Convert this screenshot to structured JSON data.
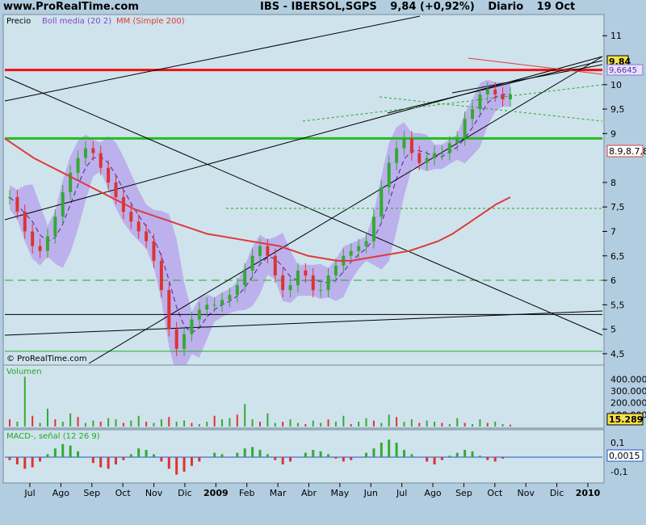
{
  "header": {
    "site": "www.ProRealTime.com",
    "ticker": "IBS - IBERSOL,SGPS",
    "price_change": "9,84 (+0,92%)",
    "period": "Diario",
    "date": "19 Oct"
  },
  "colors": {
    "background": "#b3cde0",
    "panel": "#cfe3ec",
    "bollinger": "#b8a8ec",
    "sma": "#dd3b3b",
    "up": "#33aa33",
    "down": "#dd3333",
    "macd_line": "#2255cc"
  },
  "chart_data": {
    "type": "candlestick",
    "price_panel": {
      "label": "Precio",
      "indicators": [
        "Boll media (20 2)",
        "MM (Simple 200)"
      ],
      "ylim": [
        4.3,
        11.4
      ],
      "y_ticks": [
        "11",
        "10",
        "9,5",
        "9",
        "8",
        "7,5",
        "7",
        "6,5",
        "6",
        "5,5",
        "5",
        "4,5"
      ],
      "last_price": "9,84",
      "boll_middle": "9,6645",
      "sma200": [
        8.9,
        8.7,
        8.5,
        8.35,
        8.2,
        8.05,
        7.9,
        7.75,
        7.6,
        7.45,
        7.35,
        7.25,
        7.15,
        7.05,
        6.95,
        6.9,
        6.85,
        6.8,
        6.75,
        6.7,
        6.6,
        6.5,
        6.45,
        6.4,
        6.4,
        6.45,
        6.5,
        6.55,
        6.6,
        6.7,
        6.8,
        6.95,
        7.15,
        7.35,
        7.55,
        7.7
      ],
      "horizontal_lines": [
        {
          "value": 10.3,
          "color": "#ee1111",
          "width": 3
        },
        {
          "value": 8.9,
          "color": "#22bb22",
          "width": 3
        },
        {
          "value": 6.0,
          "color": "#22aa22",
          "dash": true
        },
        {
          "value": 5.3,
          "color": "#000000"
        },
        {
          "value": 4.55,
          "color": "#22aa22"
        }
      ],
      "close": [
        7.7,
        7.4,
        7.0,
        6.7,
        6.6,
        6.9,
        7.3,
        7.8,
        8.2,
        8.5,
        8.7,
        8.6,
        8.3,
        8.0,
        7.7,
        7.4,
        7.2,
        7.0,
        6.8,
        6.4,
        5.8,
        5.0,
        4.6,
        4.9,
        5.2,
        5.4,
        5.5,
        5.5,
        5.6,
        5.7,
        5.9,
        6.2,
        6.5,
        6.7,
        6.5,
        6.1,
        5.8,
        5.9,
        6.2,
        6.1,
        5.8,
        5.8,
        6.1,
        6.3,
        6.5,
        6.6,
        6.7,
        6.8,
        7.3,
        7.9,
        8.4,
        8.7,
        8.9,
        8.6,
        8.4,
        8.5,
        8.6,
        8.6,
        8.8,
        8.9,
        9.3,
        9.5,
        9.8,
        9.9,
        9.8,
        9.7,
        9.8
      ]
    },
    "volume_panel": {
      "label": "Volumen",
      "y_ticks": [
        "400.000",
        "300.000",
        "200.000",
        "100.000"
      ],
      "last": "15.289",
      "values": [
        60000,
        40000,
        420000,
        90000,
        30000,
        150000,
        60000,
        40000,
        110000,
        80000,
        30000,
        50000,
        40000,
        70000,
        60000,
        30000,
        50000,
        90000,
        40000,
        30000,
        60000,
        80000,
        40000,
        50000,
        30000,
        20000,
        40000,
        90000,
        60000,
        70000,
        100000,
        190000,
        60000,
        40000,
        110000,
        30000,
        40000,
        60000,
        30000,
        20000,
        50000,
        30000,
        60000,
        40000,
        90000,
        20000,
        40000,
        70000,
        50000,
        30000,
        100000,
        80000,
        40000,
        60000,
        30000,
        50000,
        40000,
        30000,
        20000,
        70000,
        30000,
        20000,
        60000,
        30000,
        40000,
        20000,
        15289
      ]
    },
    "macd_panel": {
      "label": "MACD-, señal (12 26 9)",
      "y_ticks": [
        "0,1",
        "-0,1"
      ],
      "last": "0,0015",
      "values": [
        -0.02,
        -0.05,
        -0.08,
        -0.07,
        -0.03,
        0.02,
        0.06,
        0.09,
        0.08,
        0.04,
        0.0,
        -0.04,
        -0.07,
        -0.08,
        -0.05,
        -0.02,
        0.02,
        0.06,
        0.05,
        0.02,
        -0.03,
        -0.08,
        -0.12,
        -0.1,
        -0.06,
        -0.03,
        0.0,
        0.03,
        0.02,
        0.0,
        0.03,
        0.06,
        0.07,
        0.05,
        0.02,
        -0.02,
        -0.05,
        -0.03,
        0.0,
        0.03,
        0.05,
        0.04,
        0.02,
        -0.01,
        -0.03,
        -0.02,
        0.0,
        0.03,
        0.06,
        0.1,
        0.12,
        0.1,
        0.05,
        0.02,
        0.0,
        -0.03,
        -0.05,
        -0.02,
        0.01,
        0.03,
        0.05,
        0.04,
        0.01,
        -0.02,
        -0.03,
        -0.01,
        0.0015
      ]
    },
    "x_labels": [
      "Jul",
      "Ago",
      "Sep",
      "Oct",
      "Nov",
      "Dic",
      "2009",
      "Feb",
      "Mar",
      "Abr",
      "May",
      "Jun",
      "Jul",
      "Ago",
      "Sep",
      "Oct",
      "Nov",
      "Dic",
      "2010"
    ],
    "watermark": "© ProRealTime.com"
  }
}
